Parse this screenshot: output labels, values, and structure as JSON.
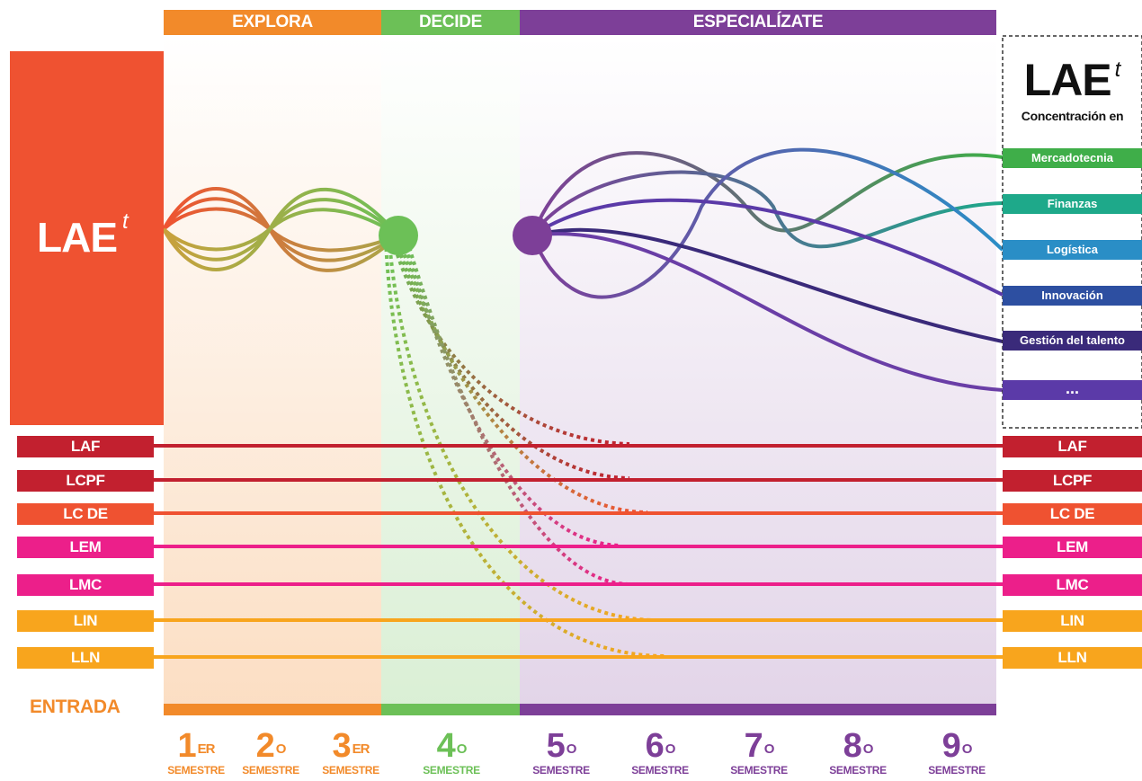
{
  "phases": {
    "explora": {
      "label": "EXPLORA",
      "color": "#f28a2a"
    },
    "decide": {
      "label": "DECIDE",
      "color": "#6cc057"
    },
    "especializate": {
      "label": "ESPECIALÍZATE",
      "color": "#7d3f98"
    }
  },
  "lae": {
    "main": "LAE",
    "sup": "t",
    "color": "#ef5231"
  },
  "right_panel": {
    "title_main": "LAE",
    "title_sup": "t",
    "subtitle": "Concentración en",
    "items": [
      {
        "label": "Mercadotecnia",
        "color": "#3fae49"
      },
      {
        "label": "Finanzas",
        "color": "#1ea98a"
      },
      {
        "label": "Logística",
        "color": "#2a8ec6"
      },
      {
        "label": "Innovación",
        "color": "#2d4fa1"
      },
      {
        "label": "Gestión del talento",
        "color": "#3a2a7a"
      },
      {
        "label": "...",
        "color": "#5b3aa8"
      }
    ]
  },
  "programs": [
    {
      "label": "LAF",
      "color": "#c2202f"
    },
    {
      "label": "LCPF",
      "color": "#c2202f"
    },
    {
      "label": "LC DE",
      "color": "#ef5231"
    },
    {
      "label": "LEM",
      "color": "#ec1f8a"
    },
    {
      "label": "LMC",
      "color": "#ec1f8a"
    },
    {
      "label": "LIN",
      "color": "#f8a51d"
    },
    {
      "label": "LLN",
      "color": "#f8a51d"
    }
  ],
  "entrada": "ENTRADA",
  "semesters": [
    {
      "num": "1",
      "sup": "ER",
      "label": "SEMESTRE",
      "color": "#f28a2a"
    },
    {
      "num": "2",
      "sup": "O",
      "label": "SEMESTRE",
      "color": "#f28a2a"
    },
    {
      "num": "3",
      "sup": "ER",
      "label": "SEMESTRE",
      "color": "#f28a2a"
    },
    {
      "num": "4",
      "sup": "O",
      "label": "SEMESTRE",
      "color": "#6cc057"
    },
    {
      "num": "5",
      "sup": "O",
      "label": "SEMESTRE",
      "color": "#7d3f98"
    },
    {
      "num": "6",
      "sup": "O",
      "label": "SEMESTRE",
      "color": "#7d3f98"
    },
    {
      "num": "7",
      "sup": "O",
      "label": "SEMESTRE",
      "color": "#7d3f98"
    },
    {
      "num": "8",
      "sup": "O",
      "label": "SEMESTRE",
      "color": "#7d3f98"
    },
    {
      "num": "9",
      "sup": "O",
      "label": "SEMESTRE",
      "color": "#7d3f98"
    }
  ]
}
